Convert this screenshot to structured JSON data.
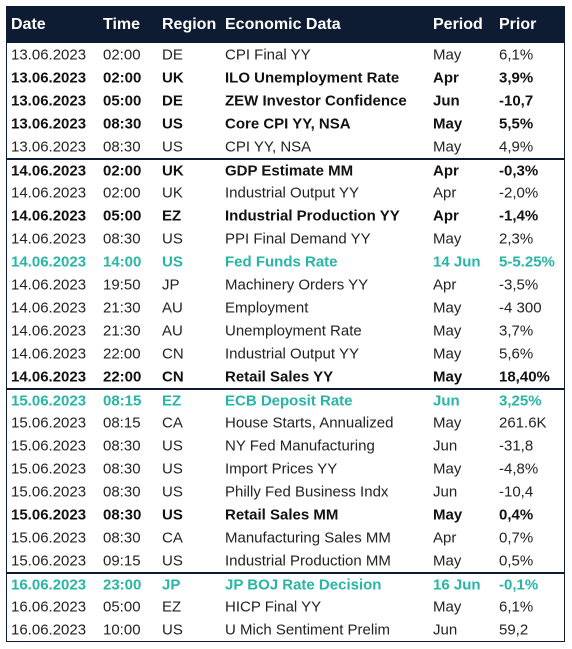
{
  "header": [
    "Date",
    "Time",
    "Region",
    "Economic Data",
    "Period",
    "Prior"
  ],
  "rows": [
    {
      "cells": [
        "13.06.2023",
        "02:00",
        "DE",
        "CPI Final YY",
        "May",
        "6,1%"
      ]
    },
    {
      "cells": [
        "13.06.2023",
        "02:00",
        "UK",
        "ILO Unemployment Rate",
        "Apr",
        "3,9%"
      ],
      "style": "bold"
    },
    {
      "cells": [
        "13.06.2023",
        "05:00",
        "DE",
        "ZEW Investor Confidence",
        "Jun",
        "-10,7"
      ],
      "style": "bold"
    },
    {
      "cells": [
        "13.06.2023",
        "08:30",
        "US",
        "Core CPI YY, NSA",
        "May",
        "5,5%"
      ],
      "style": "bold"
    },
    {
      "cells": [
        "13.06.2023",
        "08:30",
        "US",
        "CPI YY, NSA",
        "May",
        "4,9%"
      ]
    },
    {
      "cells": [
        "14.06.2023",
        "02:00",
        "UK",
        "GDP Estimate MM",
        "Apr",
        "-0,3%"
      ],
      "style": "bold"
    },
    {
      "cells": [
        "14.06.2023",
        "02:00",
        "UK",
        "Industrial Output YY",
        "Apr",
        "-2,0%"
      ]
    },
    {
      "cells": [
        "14.06.2023",
        "05:00",
        "EZ",
        "Industrial Production YY",
        "Apr",
        "-1,4%"
      ],
      "style": "bold"
    },
    {
      "cells": [
        "14.06.2023",
        "08:30",
        "US",
        "PPI Final Demand YY",
        "May",
        "2,3%"
      ]
    },
    {
      "cells": [
        "14.06.2023",
        "14:00",
        "US",
        "Fed Funds Rate",
        "14 Jun",
        "5-5.25%"
      ],
      "style": "highlight"
    },
    {
      "cells": [
        "14.06.2023",
        "19:50",
        "JP",
        "Machinery Orders YY",
        "Apr",
        "-3,5%"
      ]
    },
    {
      "cells": [
        "14.06.2023",
        "21:30",
        "AU",
        "Employment",
        "May",
        "-4 300"
      ]
    },
    {
      "cells": [
        "14.06.2023",
        "21:30",
        "AU",
        "Unemployment Rate",
        "May",
        "3,7%"
      ]
    },
    {
      "cells": [
        "14.06.2023",
        "22:00",
        "CN",
        "Industrial Output YY",
        "May",
        "5,6%"
      ]
    },
    {
      "cells": [
        "14.06.2023",
        "22:00",
        "CN",
        "Retail Sales YY",
        "May",
        "18,40%"
      ],
      "style": "bold"
    },
    {
      "cells": [
        "15.06.2023",
        "08:15",
        "EZ",
        "ECB Deposit Rate",
        "Jun",
        "3,25%"
      ],
      "style": "highlight"
    },
    {
      "cells": [
        "15.06.2023",
        "08:15",
        "CA",
        "House Starts, Annualized",
        "May",
        "261.6K"
      ]
    },
    {
      "cells": [
        "15.06.2023",
        "08:30",
        "US",
        "NY Fed Manufacturing",
        "Jun",
        "-31,8"
      ]
    },
    {
      "cells": [
        "15.06.2023",
        "08:30",
        "US",
        "Import Prices YY",
        "May",
        "-4,8%"
      ]
    },
    {
      "cells": [
        "15.06.2023",
        "08:30",
        "US",
        "Philly Fed Business Indx",
        "Jun",
        "-10,4"
      ]
    },
    {
      "cells": [
        "15.06.2023",
        "08:30",
        "US",
        "Retail Sales MM",
        "May",
        "0,4%"
      ],
      "style": "bold"
    },
    {
      "cells": [
        "15.06.2023",
        "08:30",
        "CA",
        "Manufacturing Sales MM",
        "Apr",
        "0,7%"
      ]
    },
    {
      "cells": [
        "15.06.2023",
        "09:15",
        "US",
        "Industrial Production MM",
        "May",
        "0,5%"
      ]
    },
    {
      "cells": [
        "16.06.2023",
        "23:00",
        "JP",
        "JP BOJ Rate Decision",
        "16 Jun",
        "-0,1%"
      ],
      "style": "highlight"
    },
    {
      "cells": [
        "16.06.2023",
        "05:00",
        "EZ",
        "HICP Final YY",
        "May",
        "6,1%"
      ]
    },
    {
      "cells": [
        "16.06.2023",
        "10:00",
        "US",
        "U Mich Sentiment Prelim",
        "Jun",
        "59,2"
      ]
    }
  ]
}
